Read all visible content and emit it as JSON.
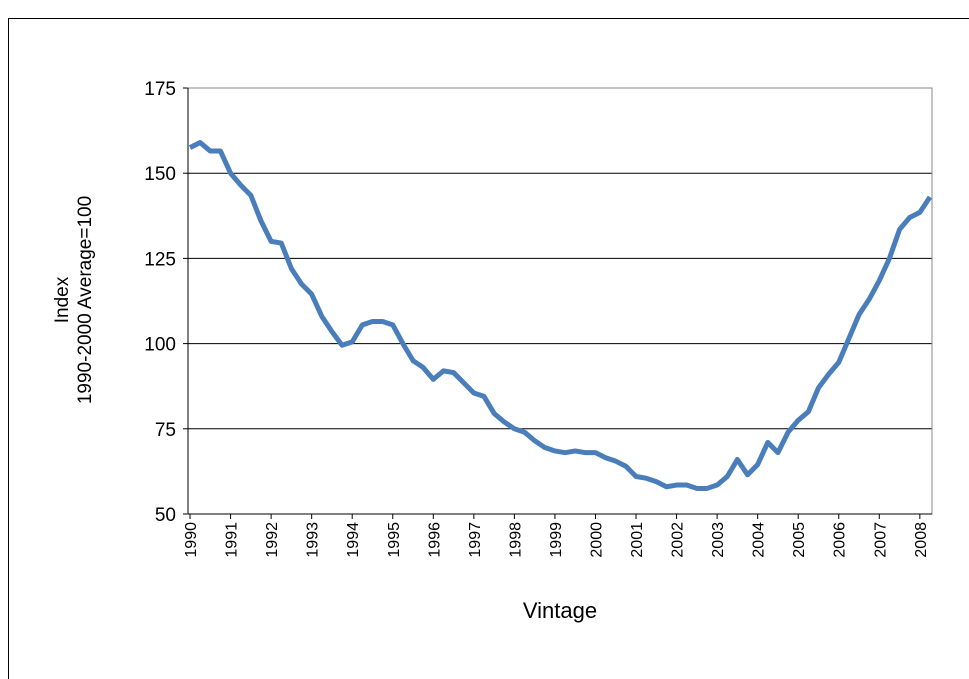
{
  "chart_data": {
    "type": "line",
    "xlabel": "Vintage",
    "ylabel": [
      "Index",
      "1990-2000 Average=100"
    ],
    "x": [
      1990,
      1990.25,
      1990.5,
      1990.75,
      1991,
      1991.25,
      1991.5,
      1991.75,
      1992,
      1992.25,
      1992.5,
      1992.75,
      1993,
      1993.25,
      1993.5,
      1993.75,
      1994,
      1994.25,
      1994.5,
      1994.75,
      1995,
      1995.25,
      1995.5,
      1995.75,
      1996,
      1996.25,
      1996.5,
      1996.75,
      1997,
      1997.25,
      1997.5,
      1997.75,
      1998,
      1998.25,
      1998.5,
      1998.75,
      1999,
      1999.25,
      1999.5,
      1999.75,
      2000,
      2000.25,
      2000.5,
      2000.75,
      2001,
      2001.25,
      2001.5,
      2001.75,
      2002,
      2002.25,
      2002.5,
      2002.75,
      2003,
      2003.25,
      2003.5,
      2003.75,
      2004,
      2004.25,
      2004.5,
      2004.75,
      2005,
      2005.25,
      2005.5,
      2005.75,
      2006,
      2006.25,
      2006.5,
      2006.75,
      2007,
      2007.25,
      2007.5,
      2007.75,
      2008,
      2008.25
    ],
    "series": [
      {
        "color": "#4a7ebb",
        "values": [
          157.5,
          159,
          156.5,
          156.5,
          150,
          146.5,
          143.5,
          136,
          130,
          129.5,
          122,
          117.5,
          114.5,
          108,
          103.5,
          99.5,
          100.5,
          105.5,
          106.5,
          106.5,
          105.5,
          100,
          95,
          93,
          89.5,
          92,
          91.5,
          88.5,
          85.5,
          84.5,
          79.5,
          77,
          75,
          74,
          71.5,
          69.5,
          68.5,
          68,
          68.5,
          68,
          68,
          66.5,
          65.5,
          64,
          61,
          60.5,
          59.5,
          58,
          58.5,
          58.5,
          57.5,
          57.5,
          58.5,
          61,
          66,
          61.5,
          64.5,
          71,
          68,
          74,
          77.5,
          80,
          87,
          91,
          94.5,
          101.5,
          108.5,
          113,
          118.5,
          125,
          133.5,
          137,
          138.5,
          143
        ]
      }
    ],
    "xlim": [
      1989.95,
      2008.3
    ],
    "xticks": [
      1990,
      1991,
      1992,
      1993,
      1994,
      1995,
      1996,
      1997,
      1998,
      1999,
      2000,
      2001,
      2002,
      2003,
      2004,
      2005,
      2006,
      2007,
      2008
    ],
    "ylim": [
      50,
      175
    ],
    "yticks": [
      50,
      75,
      100,
      125,
      150,
      175
    ],
    "grid": true
  }
}
